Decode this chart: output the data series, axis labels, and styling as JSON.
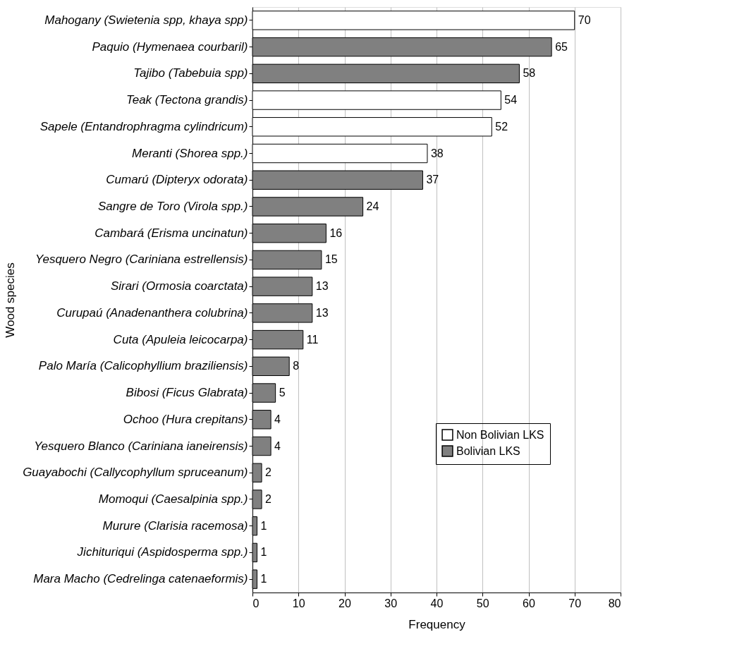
{
  "chart_data": {
    "type": "bar",
    "orientation": "horizontal",
    "xlabel": "Frequency",
    "ylabel": "Wood species",
    "categories": [
      "Mahogany (Swietenia spp, khaya spp)",
      "Paquio (Hymenaea courbaril)",
      "Tajibo (Tabebuia spp)",
      "Teak (Tectona grandis)",
      "Sapele (Entandrophragma cylindricum)",
      "Meranti (Shorea spp.)",
      "Cumarú (Dipteryx odorata)",
      "Sangre de Toro (Virola spp.)",
      "Cambará (Erisma uncinatun)",
      "Yesquero Negro (Cariniana estrellensis)",
      "Sirari (Ormosia coarctata)",
      "Curupaú (Anadenanthera colubrina)",
      "Cuta (Apuleia leicocarpa)",
      "Palo María (Calicophyllium braziliensis)",
      "Bibosi (Ficus Glabrata)",
      "Ochoo (Hura crepitans)",
      "Yesquero Blanco (Cariniana ianeirensis)",
      "Guayabochi (Callycophyllum spruceanum)",
      "Momoqui (Caesalpinia spp.)",
      "Murure (Clarisia racemosa)",
      "Jichituriqui (Aspidosperma spp.)",
      "Mara Macho (Cedrelinga catenaeformis)"
    ],
    "series": [
      {
        "name": "Non Bolivian LKS",
        "color": "#ffffff",
        "values": [
          70,
          null,
          null,
          54,
          52,
          38,
          null,
          null,
          null,
          null,
          null,
          null,
          null,
          null,
          null,
          null,
          null,
          null,
          null,
          null,
          null,
          null
        ]
      },
      {
        "name": "Bolivian LKS",
        "color": "#808080",
        "values": [
          null,
          65,
          58,
          null,
          null,
          null,
          37,
          24,
          16,
          15,
          13,
          13,
          11,
          8,
          5,
          4,
          4,
          2,
          2,
          1,
          1,
          1
        ]
      }
    ],
    "xlim": [
      0,
      80
    ],
    "xticks": [
      0,
      10,
      20,
      30,
      40,
      50,
      60,
      70,
      80
    ],
    "grid": "x",
    "legend": "right",
    "data_labels": true
  }
}
